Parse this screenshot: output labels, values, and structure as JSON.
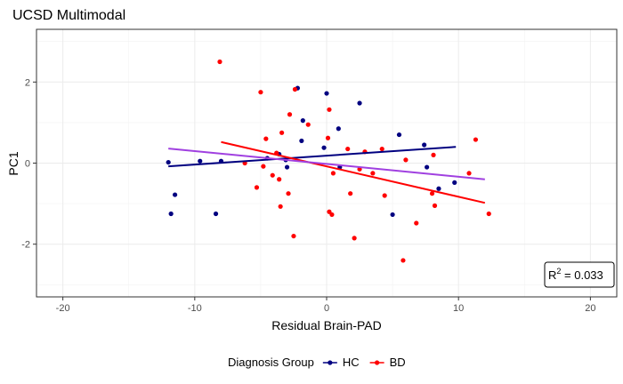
{
  "chart_data": {
    "type": "scatter",
    "title": "UCSD Multimodal",
    "xlabel": "Residual Brain-PAD",
    "ylabel": "PC1",
    "xlim": [
      -22,
      22
    ],
    "ylim": [
      -3.3,
      3.3
    ],
    "xticks": [
      -20,
      -10,
      0,
      10,
      20
    ],
    "yticks": [
      -2,
      0,
      2
    ],
    "grid": true,
    "legend": {
      "title": "Diagnosis Group",
      "placement": "bottom"
    },
    "annotation": {
      "base": "R",
      "sup": "2",
      "value": " = 0.033",
      "placement": "bottom-right"
    },
    "series": [
      {
        "name": "HC",
        "color": "#000080",
        "points": [
          [
            -12.0,
            0.02
          ],
          [
            -11.8,
            -1.25
          ],
          [
            -11.5,
            -0.78
          ],
          [
            -9.6,
            0.05
          ],
          [
            -8.4,
            -1.25
          ],
          [
            -8.0,
            0.05
          ],
          [
            -4.5,
            0.12
          ],
          [
            -3.6,
            0.22
          ],
          [
            -3.1,
            0.08
          ],
          [
            -3.0,
            -0.1
          ],
          [
            -2.2,
            1.85
          ],
          [
            -1.8,
            1.05
          ],
          [
            -1.9,
            0.55
          ],
          [
            0.0,
            1.72
          ],
          [
            -0.2,
            0.38
          ],
          [
            0.9,
            0.85
          ],
          [
            1.0,
            -0.1
          ],
          [
            2.5,
            1.48
          ],
          [
            5.0,
            -1.27
          ],
          [
            5.5,
            0.7
          ],
          [
            7.4,
            0.45
          ],
          [
            7.6,
            -0.1
          ],
          [
            8.5,
            -0.63
          ],
          [
            9.7,
            -0.48
          ]
        ],
        "fit": [
          [
            -12.0,
            -0.08
          ],
          [
            9.8,
            0.4
          ]
        ]
      },
      {
        "name": "BD",
        "color": "#ff0000",
        "points": [
          [
            -8.1,
            2.5
          ],
          [
            -6.2,
            0.0
          ],
          [
            -5.3,
            -0.6
          ],
          [
            -5.0,
            1.75
          ],
          [
            -4.8,
            -0.08
          ],
          [
            -4.6,
            0.6
          ],
          [
            -4.1,
            -0.3
          ],
          [
            -3.8,
            0.25
          ],
          [
            -3.6,
            -0.4
          ],
          [
            -3.4,
            0.75
          ],
          [
            -3.5,
            -1.07
          ],
          [
            -2.9,
            -0.75
          ],
          [
            -2.8,
            1.2
          ],
          [
            -2.4,
            1.82
          ],
          [
            -2.5,
            -1.8
          ],
          [
            -1.4,
            0.95
          ],
          [
            0.1,
            0.62
          ],
          [
            0.2,
            1.32
          ],
          [
            0.2,
            -1.2
          ],
          [
            0.4,
            -1.27
          ],
          [
            0.5,
            -0.25
          ],
          [
            1.6,
            0.35
          ],
          [
            1.8,
            -0.75
          ],
          [
            2.1,
            -1.85
          ],
          [
            2.5,
            -0.15
          ],
          [
            2.9,
            0.28
          ],
          [
            3.5,
            -0.25
          ],
          [
            4.2,
            0.35
          ],
          [
            4.4,
            -0.8
          ],
          [
            5.8,
            -2.4
          ],
          [
            6.0,
            0.08
          ],
          [
            6.8,
            -1.48
          ],
          [
            8.0,
            -0.75
          ],
          [
            8.1,
            0.2
          ],
          [
            8.2,
            -1.05
          ],
          [
            10.8,
            -0.25
          ],
          [
            11.3,
            0.58
          ],
          [
            12.3,
            -1.25
          ]
        ],
        "fit": [
          [
            -8.0,
            0.52
          ],
          [
            12.0,
            -0.98
          ]
        ]
      },
      {
        "name": "",
        "color": "#a040e0",
        "points": [],
        "fit": [
          [
            -12.0,
            0.36
          ],
          [
            12.0,
            -0.4
          ]
        ]
      }
    ]
  }
}
